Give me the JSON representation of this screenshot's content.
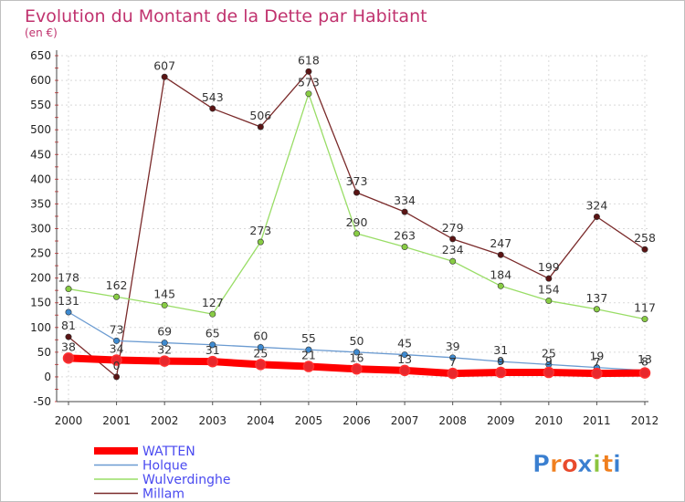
{
  "chart_data": {
    "type": "line",
    "title": "Evolution du Montant de la Dette par Habitant",
    "subtitle": "(en €)",
    "xlabel": "",
    "ylabel": "",
    "ylim": [
      -50,
      650
    ],
    "yticks": [
      -50,
      0,
      50,
      100,
      150,
      200,
      250,
      300,
      350,
      400,
      450,
      500,
      550,
      600,
      650
    ],
    "ytick_labels": [
      "-50",
      "0",
      "50",
      "100",
      "150",
      "200",
      "250",
      "300",
      "350",
      "400",
      "450",
      "500",
      "550",
      "600",
      "650"
    ],
    "x": [
      "2000",
      "2001",
      "2002",
      "2003",
      "2004",
      "2005",
      "2006",
      "2007",
      "2008",
      "2009",
      "2010",
      "2011",
      "2012"
    ],
    "grid": true,
    "legend_position": "bottom-left",
    "series": [
      {
        "name": "WATTEN",
        "color": "#ff0000",
        "marker": "#e8282d",
        "values": [
          38,
          34,
          32,
          31,
          25,
          21,
          16,
          13,
          7,
          9,
          9,
          7,
          8
        ],
        "labels": [
          "38",
          "34",
          "32",
          "31",
          "25",
          "21",
          "16",
          "13",
          "7",
          "9",
          "9",
          "7",
          "8"
        ]
      },
      {
        "name": "Holque",
        "color": "#6b9bd1",
        "marker": "#3e8ad0",
        "values": [
          131,
          73,
          69,
          65,
          60,
          55,
          50,
          45,
          39,
          31,
          25,
          19,
          13
        ],
        "labels": [
          "131",
          "73",
          "69",
          "65",
          "60",
          "55",
          "50",
          "45",
          "39",
          "31",
          "25",
          "19",
          "13"
        ]
      },
      {
        "name": "Wulverdinghe",
        "color": "#99dd66",
        "marker": "#88cc44",
        "values": [
          178,
          162,
          145,
          127,
          273,
          573,
          290,
          263,
          234,
          184,
          154,
          137,
          117
        ],
        "labels": [
          "178",
          "162",
          "145",
          "127",
          "273",
          "573",
          "290",
          "263",
          "234",
          "184",
          "154",
          "137",
          "117"
        ]
      },
      {
        "name": "Millam",
        "color": "#7a2a2a",
        "marker": "#5a1414",
        "values": [
          81,
          0,
          607,
          543,
          506,
          618,
          373,
          334,
          279,
          247,
          199,
          324,
          258
        ],
        "labels": [
          "81",
          "0",
          "607",
          "543",
          "506",
          "618",
          "373",
          "334",
          "279",
          "247",
          "199",
          "324",
          "258"
        ]
      }
    ]
  },
  "logo": {
    "letters": [
      "P",
      "r",
      "o",
      "x",
      "i",
      "t",
      "i"
    ],
    "colors": [
      "#3a7fd0",
      "#f07f1e",
      "#e84a2c",
      "#3a7fd0",
      "#8bc53f",
      "#f07f1e",
      "#3a7fd0"
    ]
  }
}
